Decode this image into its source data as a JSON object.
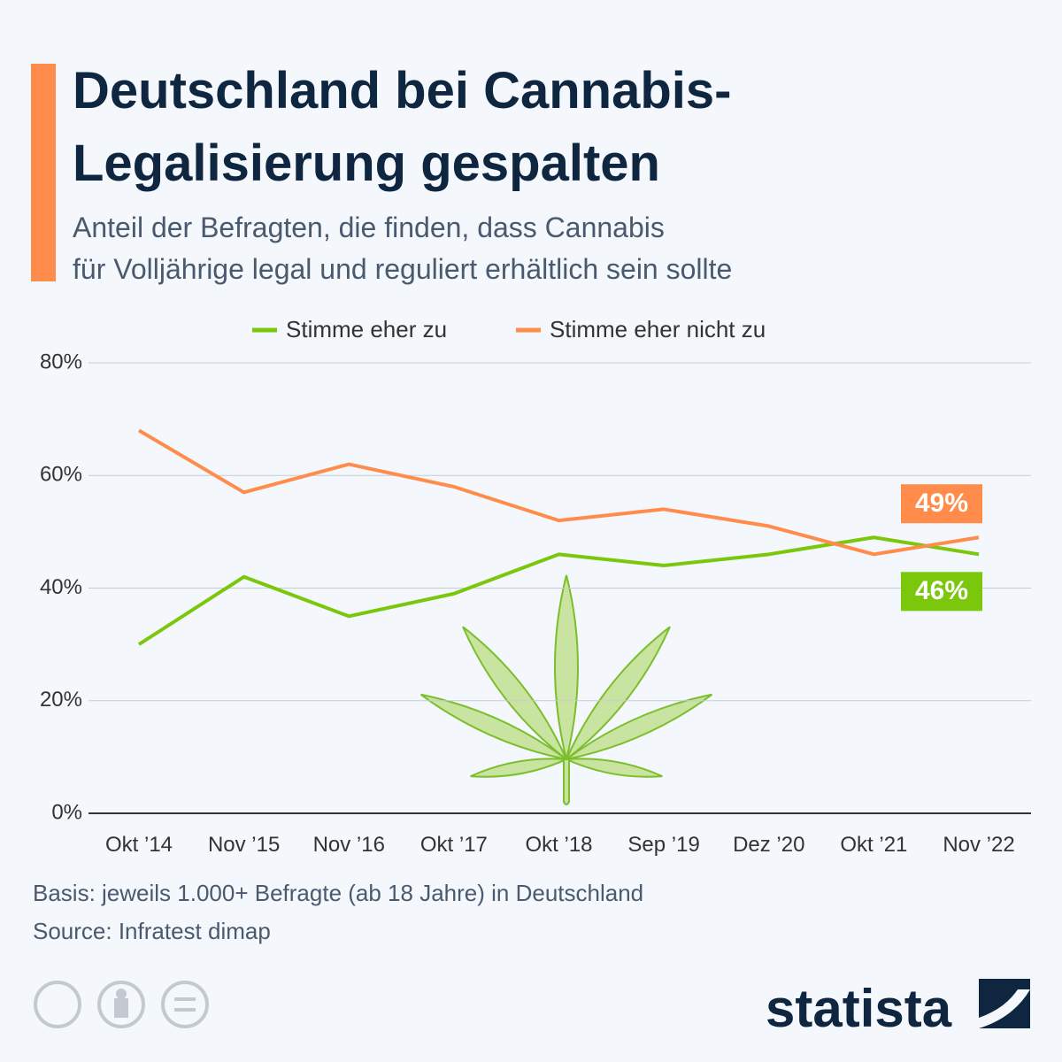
{
  "chart_data": {
    "type": "line",
    "title_lines": [
      "Deutschland bei Cannabis-",
      "Legalisierung gespalten"
    ],
    "subtitle_lines": [
      "Anteil der Befragten, die finden, dass Cannabis",
      "für Volljährige legal und reguliert erhältlich sein sollte"
    ],
    "categories": [
      "Okt ’14",
      "Nov ’15",
      "Nov ’16",
      "Okt ’17",
      "Okt ’18",
      "Sep ’19",
      "Dez ’20",
      "Okt ’21",
      "Nov ’22"
    ],
    "series": [
      {
        "name": "Stimme eher zu",
        "color": "#7ac70c",
        "values": [
          30,
          42,
          35,
          39,
          46,
          44,
          46,
          49,
          46
        ],
        "value_labels": [
          null,
          null,
          null,
          null,
          null,
          null,
          null,
          null,
          "46%"
        ]
      },
      {
        "name": "Stimme eher nicht zu",
        "color": "#ff8c4b",
        "values": [
          68,
          57,
          62,
          58,
          52,
          54,
          51,
          46,
          49
        ],
        "value_labels": [
          null,
          null,
          null,
          null,
          null,
          null,
          null,
          null,
          "49%"
        ]
      }
    ],
    "ylim": [
      0,
      80
    ],
    "yticks": [
      {
        "value": 0,
        "label": "0%"
      },
      {
        "value": 20,
        "label": "20%"
      },
      {
        "value": 40,
        "label": "40%"
      },
      {
        "value": 60,
        "label": "60%"
      },
      {
        "value": 80,
        "label": "80%"
      }
    ],
    "grid": true,
    "legend": "top",
    "note": "Basis: jeweils 1.000+ Befragte (ab 18 Jahre) in Deutschland",
    "source": "Source: Infratest dimap",
    "brand": "statista"
  }
}
